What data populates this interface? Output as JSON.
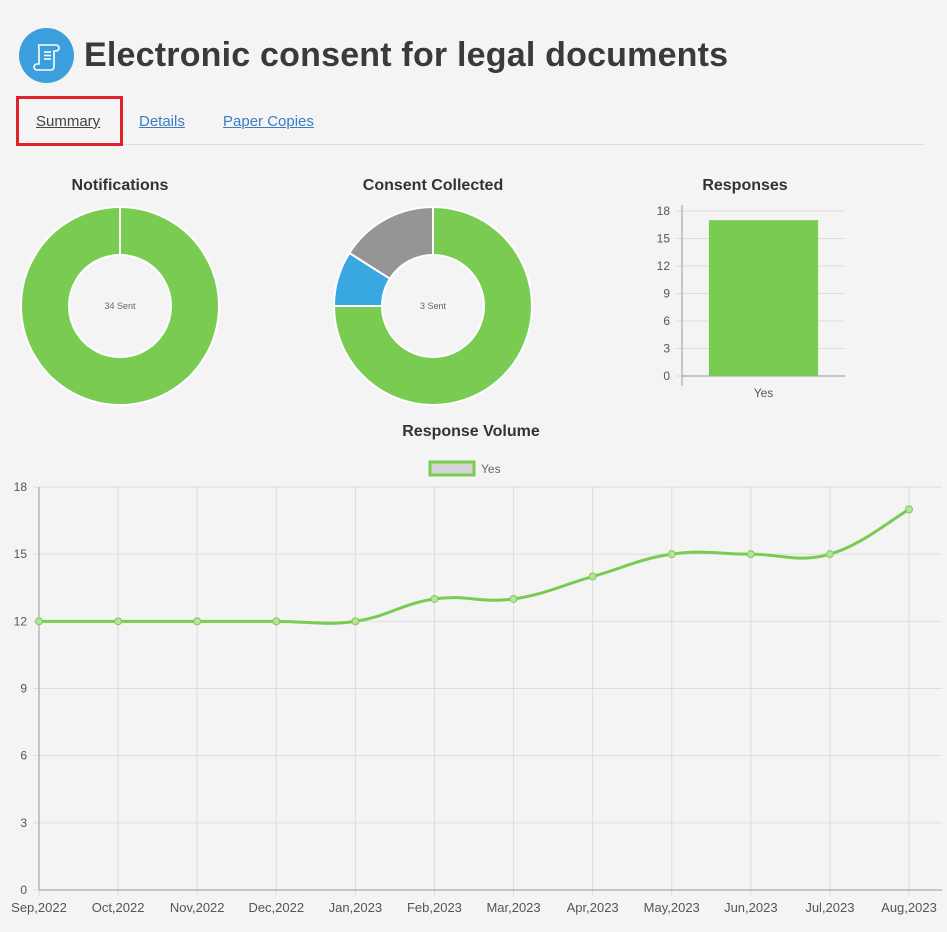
{
  "header": {
    "title": "Electronic consent for legal documents",
    "icon": "document-scroll-icon",
    "icon_color": "#3a9fdc"
  },
  "tabs": [
    {
      "label": "Summary",
      "active": true
    },
    {
      "label": "Details",
      "active": false
    },
    {
      "label": "Paper Copies",
      "active": false
    }
  ],
  "colors": {
    "green": "#79cc51",
    "blue": "#3aa8e0",
    "gray": "#959595",
    "highlight": "#e0202a"
  },
  "chart_data": [
    {
      "type": "pie",
      "title": "Notifications",
      "center_label": "34 Sent",
      "slices": [
        {
          "value": 100,
          "color": "#79cc51"
        }
      ]
    },
    {
      "type": "pie",
      "title": "Consent Collected",
      "center_label": "3 Sent",
      "slices": [
        {
          "value": 75,
          "color": "#79cc51"
        },
        {
          "value": 9,
          "color": "#3aa8e0"
        },
        {
          "value": 16,
          "color": "#959595"
        }
      ]
    },
    {
      "type": "bar",
      "title": "Responses",
      "categories": [
        "Yes"
      ],
      "values": [
        17
      ],
      "ylim": [
        0,
        18
      ],
      "yticks": [
        "0",
        "3",
        "6",
        "9",
        "12",
        "15",
        "18"
      ],
      "color": "#79cc51",
      "grid": true
    },
    {
      "type": "line",
      "title": "Response Volume",
      "legend_position": "top",
      "grid": true,
      "ylim": [
        0,
        18
      ],
      "yticks": [
        "0",
        "3",
        "6",
        "9",
        "12",
        "15",
        "18"
      ],
      "x": [
        "Sep,2022",
        "Oct,2022",
        "Nov,2022",
        "Dec,2022",
        "Jan,2023",
        "Feb,2023",
        "Mar,2023",
        "Apr,2023",
        "May,2023",
        "Jun,2023",
        "Jul,2023",
        "Aug,2023"
      ],
      "series": [
        {
          "name": "Yes",
          "values": [
            12,
            12,
            12,
            12,
            12,
            13,
            13,
            14,
            15,
            15,
            15,
            17
          ],
          "color": "#79cc51"
        }
      ]
    }
  ]
}
